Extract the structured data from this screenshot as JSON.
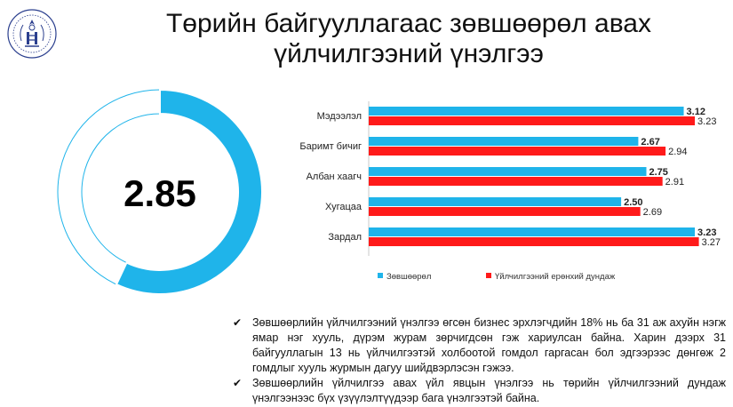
{
  "header": {
    "title_line1": "Төрийн байгууллагаас зөвшөөрөл авах",
    "title_line2": "үйлчилгээний үнэлгээ"
  },
  "colors": {
    "primary": "#1fb4ea",
    "secondary": "#ff1a1a",
    "donut_empty": "#ffffff",
    "donut_border": "#1fb4ea",
    "logo": "#2b3f8e"
  },
  "chart_data": [
    {
      "type": "pie",
      "variant": "donut",
      "center_label": "2.85",
      "value": 2.85,
      "max": 5,
      "values": [
        2.85,
        2.15
      ]
    },
    {
      "type": "bar",
      "orientation": "horizontal",
      "categories": [
        "Мэдээлэл",
        "Баримт бичиг",
        "Албан хаагч",
        "Хугацаа",
        "Зардал"
      ],
      "series": [
        {
          "name": "Зөвшөөрөл",
          "values": [
            3.12,
            2.67,
            2.75,
            2.5,
            3.23
          ],
          "labels": [
            "3.12",
            "2.67",
            "2.75",
            "2.50",
            "3.23"
          ],
          "color": "#1fb4ea"
        },
        {
          "name": "Үйлчилгээний ерөнхий дундаж",
          "values": [
            3.23,
            2.94,
            2.91,
            2.69,
            3.27
          ],
          "labels": [
            "3.23",
            "2.94",
            "2.91",
            "2.69",
            "3.27"
          ],
          "color": "#ff1a1a"
        }
      ],
      "xlim": [
        0,
        3.3
      ],
      "grid": false,
      "legend": "bottom"
    }
  ],
  "notes": [
    "Зөвшөөрлийн үйлчилгээний үнэлгээ өгсөн бизнес эрхлэгчдийн 18% нь ба 31 аж ахуйн нэгж ямар нэг хууль, дүрэм журам зөрчигдсөн гэж хариулсан байна. Харин дээрх 31 байгууллагын 13 нь үйлчилгээтэй холбоотой гомдол гаргасан бол эдгээрээс дөнгөж 2 гомдлыг хууль журмын дагуу шийдвэрлэсэн гэжээ.",
    "Зөвшөөрлийн үйлчилгээ авах үйл явцын үнэлгээ нь төрийн үйлчилгээний дундаж үнэлгээнээс бүх үзүүлэлтүүдээр бага үнэлгээтэй байна."
  ]
}
